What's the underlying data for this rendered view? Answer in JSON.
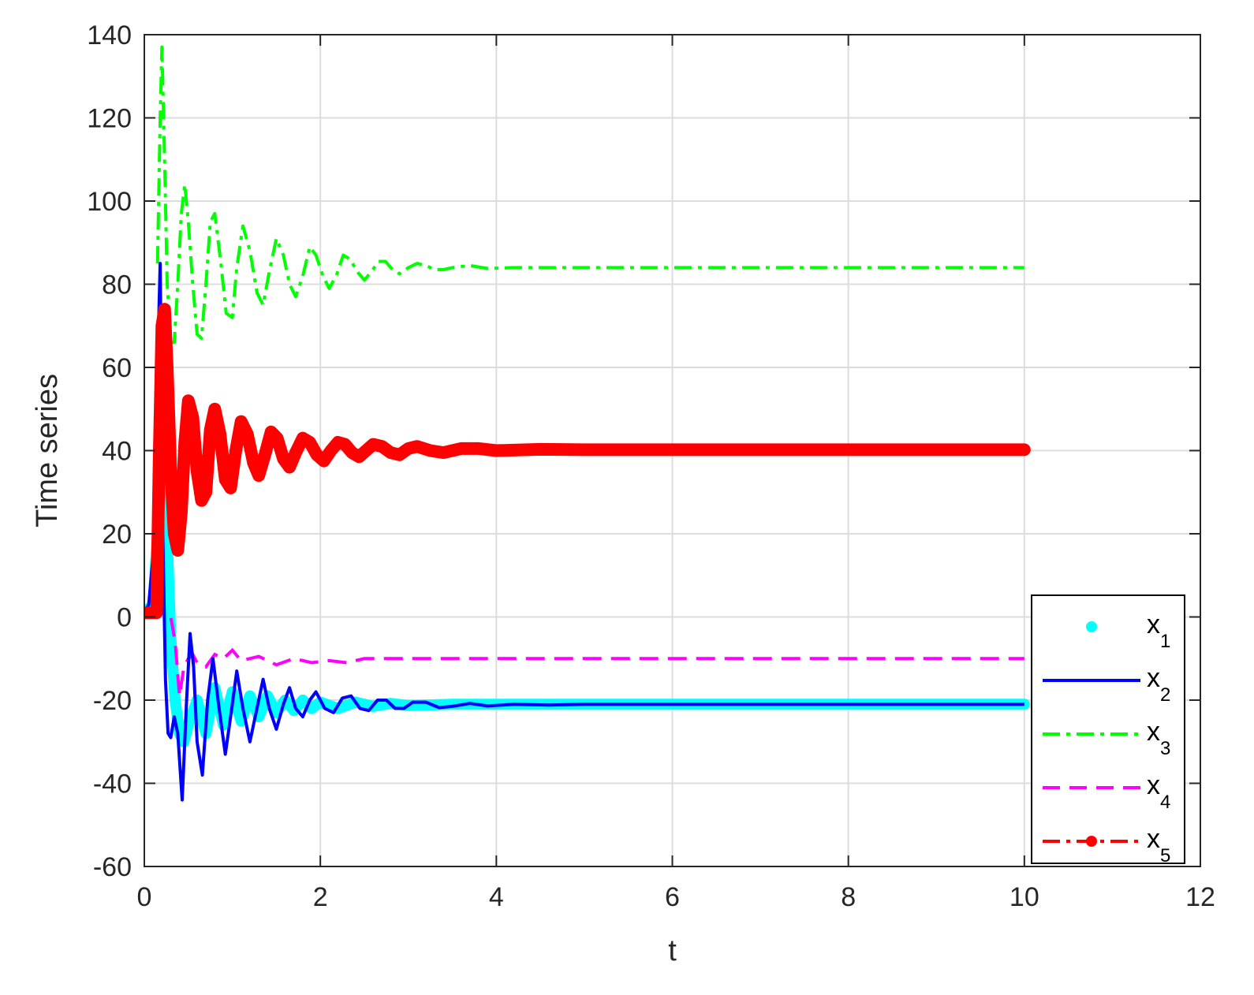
{
  "chart_data": {
    "type": "line",
    "xlabel": "t",
    "ylabel": "Time series",
    "xlim": [
      0,
      12
    ],
    "ylim": [
      -60,
      140
    ],
    "xticks": [
      "0",
      "2",
      "4",
      "6",
      "8",
      "10",
      "12"
    ],
    "yticks": [
      "-60",
      "-40",
      "-20",
      "0",
      "20",
      "40",
      "60",
      "80",
      "100",
      "120",
      "140"
    ],
    "grid": true,
    "legend_position": "bottom-right",
    "series": [
      {
        "name": "x1",
        "label_base": "x",
        "label_sub": "1",
        "color": "#00FFFF",
        "style": "dots",
        "points": [
          [
            0,
            1
          ],
          [
            0.1,
            3
          ],
          [
            0.15,
            20
          ],
          [
            0.2,
            45
          ],
          [
            0.25,
            25
          ],
          [
            0.3,
            -5
          ],
          [
            0.35,
            -20
          ],
          [
            0.4,
            -28
          ],
          [
            0.45,
            -30
          ],
          [
            0.5,
            -26
          ],
          [
            0.6,
            -20
          ],
          [
            0.7,
            -28
          ],
          [
            0.8,
            -17
          ],
          [
            0.9,
            -26
          ],
          [
            1.0,
            -18
          ],
          [
            1.1,
            -25
          ],
          [
            1.2,
            -19
          ],
          [
            1.3,
            -24
          ],
          [
            1.4,
            -19
          ],
          [
            1.5,
            -23
          ],
          [
            1.6,
            -20
          ],
          [
            1.7,
            -22.5
          ],
          [
            1.8,
            -20
          ],
          [
            1.9,
            -22
          ],
          [
            2.0,
            -20.5
          ],
          [
            2.2,
            -22
          ],
          [
            2.4,
            -20.5
          ],
          [
            2.6,
            -21.5
          ],
          [
            2.8,
            -20.8
          ],
          [
            3.0,
            -21.3
          ],
          [
            3.5,
            -21
          ],
          [
            4.0,
            -21
          ],
          [
            6,
            -21
          ],
          [
            8,
            -21
          ],
          [
            10,
            -21
          ]
        ]
      },
      {
        "name": "x2",
        "label_base": "x",
        "label_sub": "2",
        "color": "#0000FF",
        "style": "solid",
        "points": [
          [
            0,
            1
          ],
          [
            0.05,
            3
          ],
          [
            0.1,
            15
          ],
          [
            0.15,
            60
          ],
          [
            0.18,
            85
          ],
          [
            0.21,
            20
          ],
          [
            0.24,
            -15
          ],
          [
            0.27,
            -28
          ],
          [
            0.3,
            -29
          ],
          [
            0.34,
            -24
          ],
          [
            0.38,
            -28
          ],
          [
            0.43,
            -44
          ],
          [
            0.48,
            -20
          ],
          [
            0.52,
            -4
          ],
          [
            0.56,
            -12
          ],
          [
            0.6,
            -30
          ],
          [
            0.66,
            -38
          ],
          [
            0.72,
            -20
          ],
          [
            0.78,
            -10
          ],
          [
            0.85,
            -22
          ],
          [
            0.92,
            -33
          ],
          [
            0.98,
            -24
          ],
          [
            1.05,
            -13
          ],
          [
            1.12,
            -22
          ],
          [
            1.2,
            -30
          ],
          [
            1.28,
            -22
          ],
          [
            1.35,
            -15
          ],
          [
            1.42,
            -22
          ],
          [
            1.5,
            -27
          ],
          [
            1.58,
            -21
          ],
          [
            1.65,
            -17
          ],
          [
            1.72,
            -22
          ],
          [
            1.8,
            -24
          ],
          [
            1.88,
            -20
          ],
          [
            1.95,
            -18
          ],
          [
            2.05,
            -22
          ],
          [
            2.15,
            -23
          ],
          [
            2.25,
            -19.5
          ],
          [
            2.35,
            -19
          ],
          [
            2.45,
            -22
          ],
          [
            2.55,
            -22.5
          ],
          [
            2.65,
            -20
          ],
          [
            2.75,
            -20
          ],
          [
            2.85,
            -22
          ],
          [
            2.95,
            -22
          ],
          [
            3.05,
            -20.5
          ],
          [
            3.2,
            -20.5
          ],
          [
            3.35,
            -21.8
          ],
          [
            3.5,
            -21.5
          ],
          [
            3.7,
            -20.8
          ],
          [
            3.9,
            -21.4
          ],
          [
            4.2,
            -21
          ],
          [
            4.6,
            -21.2
          ],
          [
            5,
            -21
          ],
          [
            6,
            -21
          ],
          [
            8,
            -21
          ],
          [
            10,
            -21
          ]
        ]
      },
      {
        "name": "x3",
        "label_base": "x",
        "label_sub": "3",
        "color": "#00FF00",
        "style": "dashdot",
        "points": [
          [
            0.15,
            85
          ],
          [
            0.18,
            120
          ],
          [
            0.2,
            137
          ],
          [
            0.23,
            110
          ],
          [
            0.26,
            80
          ],
          [
            0.3,
            66
          ],
          [
            0.34,
            66
          ],
          [
            0.38,
            80
          ],
          [
            0.42,
            97
          ],
          [
            0.46,
            104
          ],
          [
            0.5,
            95
          ],
          [
            0.55,
            80
          ],
          [
            0.6,
            68
          ],
          [
            0.65,
            67
          ],
          [
            0.7,
            80
          ],
          [
            0.75,
            95
          ],
          [
            0.8,
            97
          ],
          [
            0.87,
            85
          ],
          [
            0.93,
            73
          ],
          [
            1.0,
            72
          ],
          [
            1.05,
            84
          ],
          [
            1.12,
            94
          ],
          [
            1.2,
            88
          ],
          [
            1.28,
            78
          ],
          [
            1.35,
            75
          ],
          [
            1.42,
            83
          ],
          [
            1.5,
            91
          ],
          [
            1.58,
            87
          ],
          [
            1.65,
            80
          ],
          [
            1.72,
            77
          ],
          [
            1.8,
            82
          ],
          [
            1.88,
            89
          ],
          [
            1.95,
            87
          ],
          [
            2.03,
            82
          ],
          [
            2.1,
            79
          ],
          [
            2.18,
            82
          ],
          [
            2.26,
            87
          ],
          [
            2.34,
            86
          ],
          [
            2.42,
            83
          ],
          [
            2.5,
            81
          ],
          [
            2.58,
            83
          ],
          [
            2.66,
            85.5
          ],
          [
            2.74,
            85.5
          ],
          [
            2.82,
            83.5
          ],
          [
            2.9,
            82.5
          ],
          [
            3.0,
            84
          ],
          [
            3.1,
            85
          ],
          [
            3.2,
            84.5
          ],
          [
            3.3,
            83.5
          ],
          [
            3.4,
            83.5
          ],
          [
            3.5,
            84
          ],
          [
            3.7,
            84.5
          ],
          [
            3.9,
            83.8
          ],
          [
            4.2,
            84
          ],
          [
            4.6,
            84
          ],
          [
            5,
            84
          ],
          [
            6,
            84
          ],
          [
            8,
            84
          ],
          [
            10,
            84
          ]
        ]
      },
      {
        "name": "x4",
        "label_base": "x",
        "label_sub": "4",
        "color": "#FF00FF",
        "style": "dashed",
        "points": [
          [
            0,
            1
          ],
          [
            0.1,
            1
          ],
          [
            0.2,
            1
          ],
          [
            0.3,
            0
          ],
          [
            0.35,
            -6
          ],
          [
            0.4,
            -19
          ],
          [
            0.45,
            -12
          ],
          [
            0.5,
            -10
          ],
          [
            0.55,
            -9
          ],
          [
            0.6,
            -11
          ],
          [
            0.7,
            -12
          ],
          [
            0.8,
            -9
          ],
          [
            0.9,
            -10
          ],
          [
            1.0,
            -8
          ],
          [
            1.1,
            -10.5
          ],
          [
            1.3,
            -9.5
          ],
          [
            1.5,
            -11.5
          ],
          [
            1.7,
            -10
          ],
          [
            1.9,
            -11
          ],
          [
            2.1,
            -10.5
          ],
          [
            2.3,
            -11
          ],
          [
            2.5,
            -10
          ],
          [
            2.8,
            -10
          ],
          [
            3.5,
            -10
          ],
          [
            4,
            -10
          ],
          [
            6,
            -10
          ],
          [
            8,
            -10
          ],
          [
            10,
            -10
          ]
        ]
      },
      {
        "name": "x5",
        "label_base": "x",
        "label_sub": "5",
        "color": "#FF0000",
        "style": "dashdot-marker",
        "points": [
          [
            0,
            1
          ],
          [
            0.05,
            1
          ],
          [
            0.1,
            1
          ],
          [
            0.14,
            1
          ],
          [
            0.17,
            40
          ],
          [
            0.2,
            70
          ],
          [
            0.23,
            74
          ],
          [
            0.26,
            60
          ],
          [
            0.3,
            35
          ],
          [
            0.34,
            20
          ],
          [
            0.38,
            16
          ],
          [
            0.42,
            25
          ],
          [
            0.46,
            42
          ],
          [
            0.5,
            52
          ],
          [
            0.55,
            48
          ],
          [
            0.6,
            35
          ],
          [
            0.65,
            28
          ],
          [
            0.7,
            30
          ],
          [
            0.75,
            45
          ],
          [
            0.8,
            50
          ],
          [
            0.86,
            44
          ],
          [
            0.92,
            33
          ],
          [
            0.98,
            31
          ],
          [
            1.04,
            40
          ],
          [
            1.1,
            47
          ],
          [
            1.17,
            44
          ],
          [
            1.24,
            37
          ],
          [
            1.3,
            34
          ],
          [
            1.37,
            39
          ],
          [
            1.44,
            44.5
          ],
          [
            1.51,
            43
          ],
          [
            1.58,
            38
          ],
          [
            1.65,
            36
          ],
          [
            1.72,
            39.5
          ],
          [
            1.8,
            43
          ],
          [
            1.88,
            42
          ],
          [
            1.96,
            39
          ],
          [
            2.04,
            37.5
          ],
          [
            2.12,
            40
          ],
          [
            2.2,
            42
          ],
          [
            2.28,
            41.5
          ],
          [
            2.36,
            39.5
          ],
          [
            2.44,
            38.5
          ],
          [
            2.52,
            40
          ],
          [
            2.6,
            41.5
          ],
          [
            2.7,
            41
          ],
          [
            2.8,
            39.5
          ],
          [
            2.9,
            39
          ],
          [
            3.0,
            40.5
          ],
          [
            3.1,
            41
          ],
          [
            3.25,
            40
          ],
          [
            3.4,
            39.5
          ],
          [
            3.6,
            40.5
          ],
          [
            3.8,
            40.5
          ],
          [
            4.0,
            40
          ],
          [
            4.5,
            40.3
          ],
          [
            5,
            40.2
          ],
          [
            6,
            40.2
          ],
          [
            8,
            40.2
          ],
          [
            10,
            40.2
          ]
        ]
      }
    ]
  }
}
